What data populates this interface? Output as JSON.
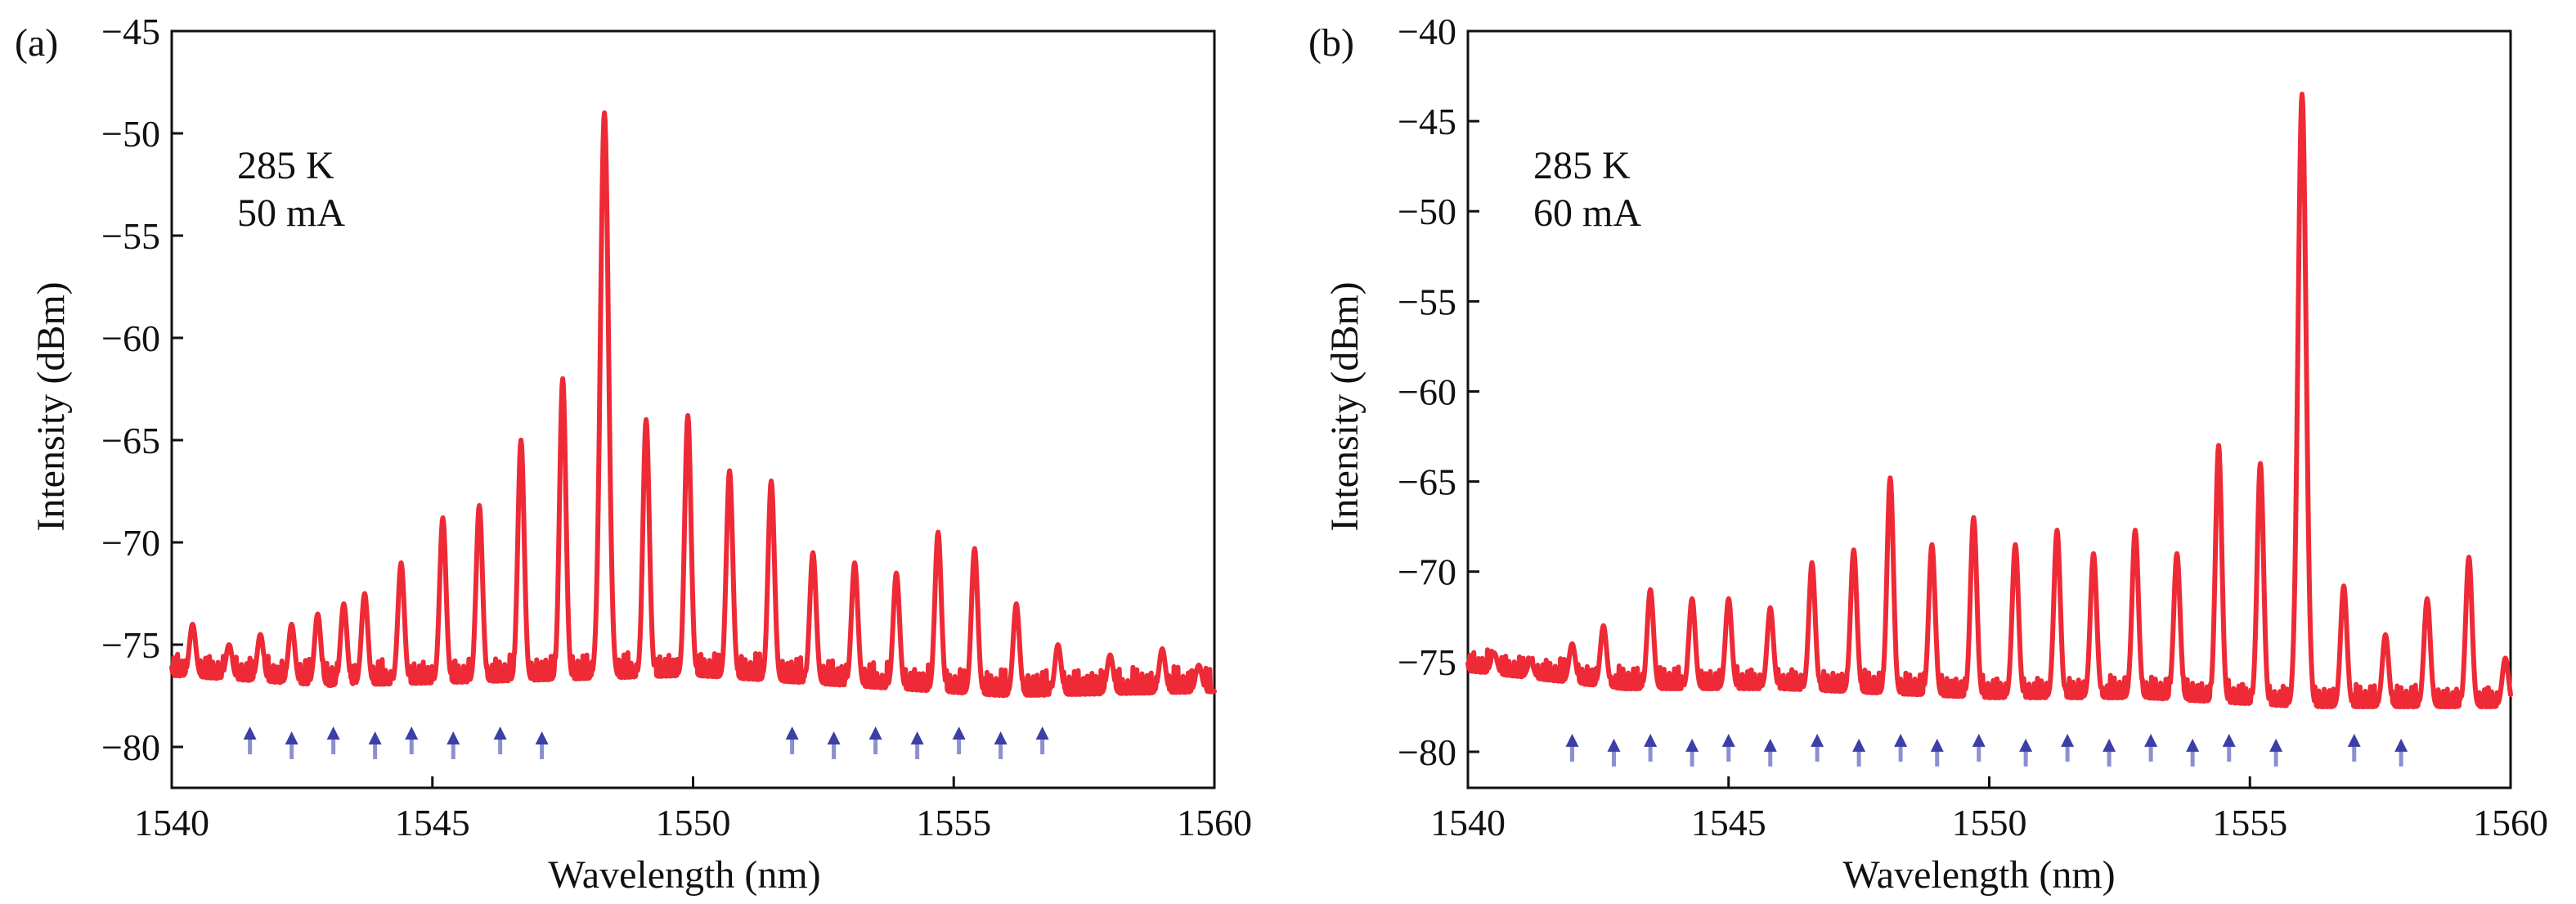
{
  "chart_data": [
    {
      "panel_label": "(a)",
      "type": "line",
      "xlabel": "Wavelength (nm)",
      "ylabel": "Intensity (dBm)",
      "xlim": [
        1540,
        1560
      ],
      "ylim": [
        -82,
        -45
      ],
      "xticks": [
        1540,
        1545,
        1550,
        1555,
        1560
      ],
      "xtick_labels": [
        "1540",
        "1545",
        "1550",
        "1555",
        "1560"
      ],
      "yticks": [
        -80,
        -75,
        -70,
        -65,
        -60,
        -55,
        -50,
        -45
      ],
      "ytick_labels": [
        "−80",
        "−75",
        "−70",
        "−65",
        "−60",
        "−55",
        "−50",
        "−45"
      ],
      "annotation_lines": [
        "285 K",
        "50 mA"
      ],
      "series": [
        {
          "name": "spectrum",
          "color": "#ee2a36",
          "baseline": [
            [
              1540,
              -76.5
            ],
            [
              1543,
              -77.0
            ],
            [
              1546,
              -76.8
            ],
            [
              1550,
              -76.5
            ],
            [
              1553,
              -77.0
            ],
            [
              1556,
              -77.5
            ],
            [
              1560,
              -77.3
            ]
          ],
          "peaks": [
            {
              "x": 1540.4,
              "y": -74.0
            },
            {
              "x": 1541.1,
              "y": -75.0
            },
            {
              "x": 1541.7,
              "y": -74.5
            },
            {
              "x": 1542.3,
              "y": -74.0
            },
            {
              "x": 1542.8,
              "y": -73.5
            },
            {
              "x": 1543.3,
              "y": -73.0
            },
            {
              "x": 1543.7,
              "y": -72.5
            },
            {
              "x": 1544.4,
              "y": -71.0
            },
            {
              "x": 1545.2,
              "y": -68.8
            },
            {
              "x": 1545.9,
              "y": -68.2
            },
            {
              "x": 1546.7,
              "y": -65.0
            },
            {
              "x": 1547.5,
              "y": -62.0
            },
            {
              "x": 1548.3,
              "y": -49.0
            },
            {
              "x": 1549.1,
              "y": -64.0
            },
            {
              "x": 1549.9,
              "y": -63.8
            },
            {
              "x": 1550.7,
              "y": -66.5
            },
            {
              "x": 1551.5,
              "y": -67.0
            },
            {
              "x": 1552.3,
              "y": -70.5
            },
            {
              "x": 1553.1,
              "y": -71.0
            },
            {
              "x": 1553.9,
              "y": -71.5
            },
            {
              "x": 1554.7,
              "y": -69.5
            },
            {
              "x": 1555.4,
              "y": -70.3
            },
            {
              "x": 1556.2,
              "y": -73.0
            },
            {
              "x": 1557.0,
              "y": -75.0
            },
            {
              "x": 1558.0,
              "y": -75.5
            },
            {
              "x": 1559.0,
              "y": -75.2
            },
            {
              "x": 1559.7,
              "y": -76.0
            }
          ]
        }
      ],
      "arrow_markers_x": [
        1541.5,
        1542.3,
        1543.1,
        1543.9,
        1544.6,
        1545.4,
        1546.3,
        1547.1,
        1551.9,
        1552.7,
        1553.5,
        1554.3,
        1555.1,
        1555.9,
        1556.7
      ]
    },
    {
      "panel_label": "(b)",
      "type": "line",
      "xlabel": "Wavelength (nm)",
      "ylabel": "Intensity (dBm)",
      "xlim": [
        1540,
        1560
      ],
      "ylim": [
        -82,
        -40
      ],
      "xticks": [
        1540,
        1545,
        1550,
        1555,
        1560
      ],
      "xtick_labels": [
        "1540",
        "1545",
        "1550",
        "1555",
        "1560"
      ],
      "yticks": [
        -80,
        -75,
        -70,
        -65,
        -60,
        -55,
        -50,
        -45,
        -40
      ],
      "ytick_labels": [
        "−80",
        "−75",
        "−70",
        "−65",
        "−60",
        "−55",
        "−50",
        "−45",
        "−40"
      ],
      "annotation_lines": [
        "285 K",
        "60 mA"
      ],
      "series": [
        {
          "name": "spectrum",
          "color": "#ee2a36",
          "baseline": [
            [
              1540,
              -75.5
            ],
            [
              1543,
              -76.5
            ],
            [
              1546,
              -76.5
            ],
            [
              1550,
              -77.0
            ],
            [
              1553,
              -77.0
            ],
            [
              1556,
              -77.5
            ],
            [
              1560,
              -77.5
            ]
          ],
          "peaks": [
            {
              "x": 1540.5,
              "y": -74.5
            },
            {
              "x": 1541.2,
              "y": -75.0
            },
            {
              "x": 1542.0,
              "y": -74.0
            },
            {
              "x": 1542.6,
              "y": -73.0
            },
            {
              "x": 1543.5,
              "y": -71.0
            },
            {
              "x": 1544.3,
              "y": -71.5
            },
            {
              "x": 1545.0,
              "y": -71.5
            },
            {
              "x": 1545.8,
              "y": -72.0
            },
            {
              "x": 1546.6,
              "y": -69.5
            },
            {
              "x": 1547.4,
              "y": -68.8
            },
            {
              "x": 1548.1,
              "y": -64.8
            },
            {
              "x": 1548.9,
              "y": -68.5
            },
            {
              "x": 1549.7,
              "y": -67.0
            },
            {
              "x": 1550.5,
              "y": -68.5
            },
            {
              "x": 1551.3,
              "y": -67.7
            },
            {
              "x": 1552.0,
              "y": -69.0
            },
            {
              "x": 1552.8,
              "y": -67.7
            },
            {
              "x": 1553.6,
              "y": -69.0
            },
            {
              "x": 1554.4,
              "y": -63.0
            },
            {
              "x": 1555.2,
              "y": -64.0
            },
            {
              "x": 1556.0,
              "y": -43.5
            },
            {
              "x": 1556.8,
              "y": -70.8
            },
            {
              "x": 1557.6,
              "y": -73.5
            },
            {
              "x": 1558.4,
              "y": -71.5
            },
            {
              "x": 1559.2,
              "y": -69.2
            },
            {
              "x": 1559.9,
              "y": -74.8
            }
          ]
        }
      ],
      "arrow_markers_x": [
        1542.0,
        1542.8,
        1543.5,
        1544.3,
        1545.0,
        1545.8,
        1546.7,
        1547.5,
        1548.3,
        1549.0,
        1549.8,
        1550.7,
        1551.5,
        1552.3,
        1553.1,
        1553.9,
        1554.6,
        1555.5,
        1557.0,
        1557.9
      ]
    }
  ]
}
